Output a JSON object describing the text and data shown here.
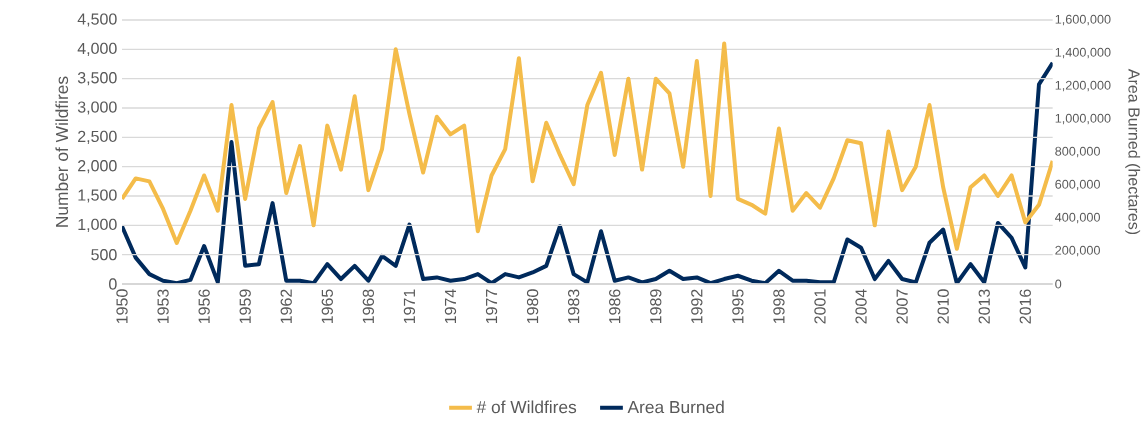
{
  "chart_data": {
    "type": "line",
    "x": [
      1950,
      1951,
      1952,
      1953,
      1954,
      1955,
      1956,
      1957,
      1958,
      1959,
      1960,
      1961,
      1962,
      1963,
      1964,
      1965,
      1966,
      1967,
      1968,
      1969,
      1970,
      1971,
      1972,
      1973,
      1974,
      1975,
      1976,
      1977,
      1978,
      1979,
      1980,
      1981,
      1982,
      1983,
      1984,
      1985,
      1986,
      1987,
      1988,
      1989,
      1990,
      1991,
      1992,
      1993,
      1994,
      1995,
      1996,
      1997,
      1998,
      1999,
      2000,
      2001,
      2002,
      2003,
      2004,
      2005,
      2006,
      2007,
      2008,
      2009,
      2010,
      2011,
      2012,
      2013,
      2014,
      2015,
      2016,
      2017,
      2018
    ],
    "series": [
      {
        "name": "# of Wildfires",
        "color": "#f4bc4a",
        "values": [
          1450,
          1800,
          1750,
          1280,
          700,
          1250,
          1850,
          1250,
          3050,
          1450,
          2650,
          3100,
          1550,
          2350,
          1000,
          2700,
          1950,
          3200,
          1600,
          2300,
          4000,
          2900,
          1900,
          2850,
          2550,
          2700,
          900,
          1850,
          2300,
          3850,
          1750,
          2750,
          2200,
          1700,
          3050,
          3600,
          2200,
          3500,
          1950,
          3500,
          3250,
          2000,
          3800,
          1500,
          4100,
          1450,
          1350,
          1200,
          2650,
          1250,
          1550,
          1300,
          1800,
          2450,
          2400,
          1000,
          2600,
          1600,
          2000,
          3050,
          1650,
          600,
          1650,
          1850,
          1500,
          1850,
          1050,
          1350,
          2100
        ]
      },
      {
        "name": "Area Burned",
        "color": "#002a5c",
        "axis": "y2",
        "values": [
          350000,
          160000,
          60000,
          20000,
          5000,
          25000,
          230000,
          10000,
          860000,
          110000,
          120000,
          490000,
          20000,
          20000,
          5000,
          120000,
          30000,
          110000,
          20000,
          170000,
          110000,
          360000,
          30000,
          40000,
          20000,
          30000,
          60000,
          5000,
          60000,
          40000,
          70000,
          110000,
          350000,
          60000,
          10000,
          320000,
          20000,
          40000,
          10000,
          30000,
          80000,
          30000,
          40000,
          5000,
          30000,
          50000,
          20000,
          5000,
          80000,
          20000,
          20000,
          10000,
          10000,
          270000,
          220000,
          30000,
          140000,
          30000,
          10000,
          250000,
          330000,
          5000,
          120000,
          10000,
          370000,
          280000,
          100000,
          1210000,
          1340000
        ]
      }
    ],
    "ylabel": "Number of Wildfires",
    "y2label": "Area Burned (hectares)",
    "xlim": [
      1950,
      2018
    ],
    "xticks": [
      1950,
      1953,
      1956,
      1959,
      1962,
      1965,
      1968,
      1971,
      1974,
      1977,
      1980,
      1983,
      1986,
      1989,
      1992,
      1995,
      1998,
      2001,
      2004,
      2007,
      2010,
      2013,
      2016
    ],
    "ylim": [
      0,
      4500
    ],
    "yticks": [
      0,
      500,
      {
        "value": 1000,
        "label": "1,000"
      },
      {
        "value": 1500,
        "label": "1,500"
      },
      {
        "value": 2000,
        "label": "2,000"
      },
      {
        "value": 2500,
        "label": "2,500"
      },
      {
        "value": 3000,
        "label": "3,000"
      },
      {
        "value": 3500,
        "label": "3,500"
      },
      {
        "value": 4000,
        "label": "4,000"
      },
      {
        "value": 4500,
        "label": "4,500"
      }
    ],
    "y2lim": [
      0,
      1600000
    ],
    "y2ticks": [
      0,
      {
        "value": 200000,
        "label": "200,000"
      },
      {
        "value": 400000,
        "label": "400,000"
      },
      {
        "value": 600000,
        "label": "600,000"
      },
      {
        "value": 800000,
        "label": "800,000"
      },
      {
        "value": 1000000,
        "label": "1,000,000"
      },
      {
        "value": 1200000,
        "label": "1,200,000"
      },
      {
        "value": 1400000,
        "label": "1,400,000"
      },
      {
        "value": 1600000,
        "label": "1,600,000"
      }
    ],
    "grid": "y",
    "legend": "bottom",
    "marker": "none",
    "line_style": "solid"
  }
}
